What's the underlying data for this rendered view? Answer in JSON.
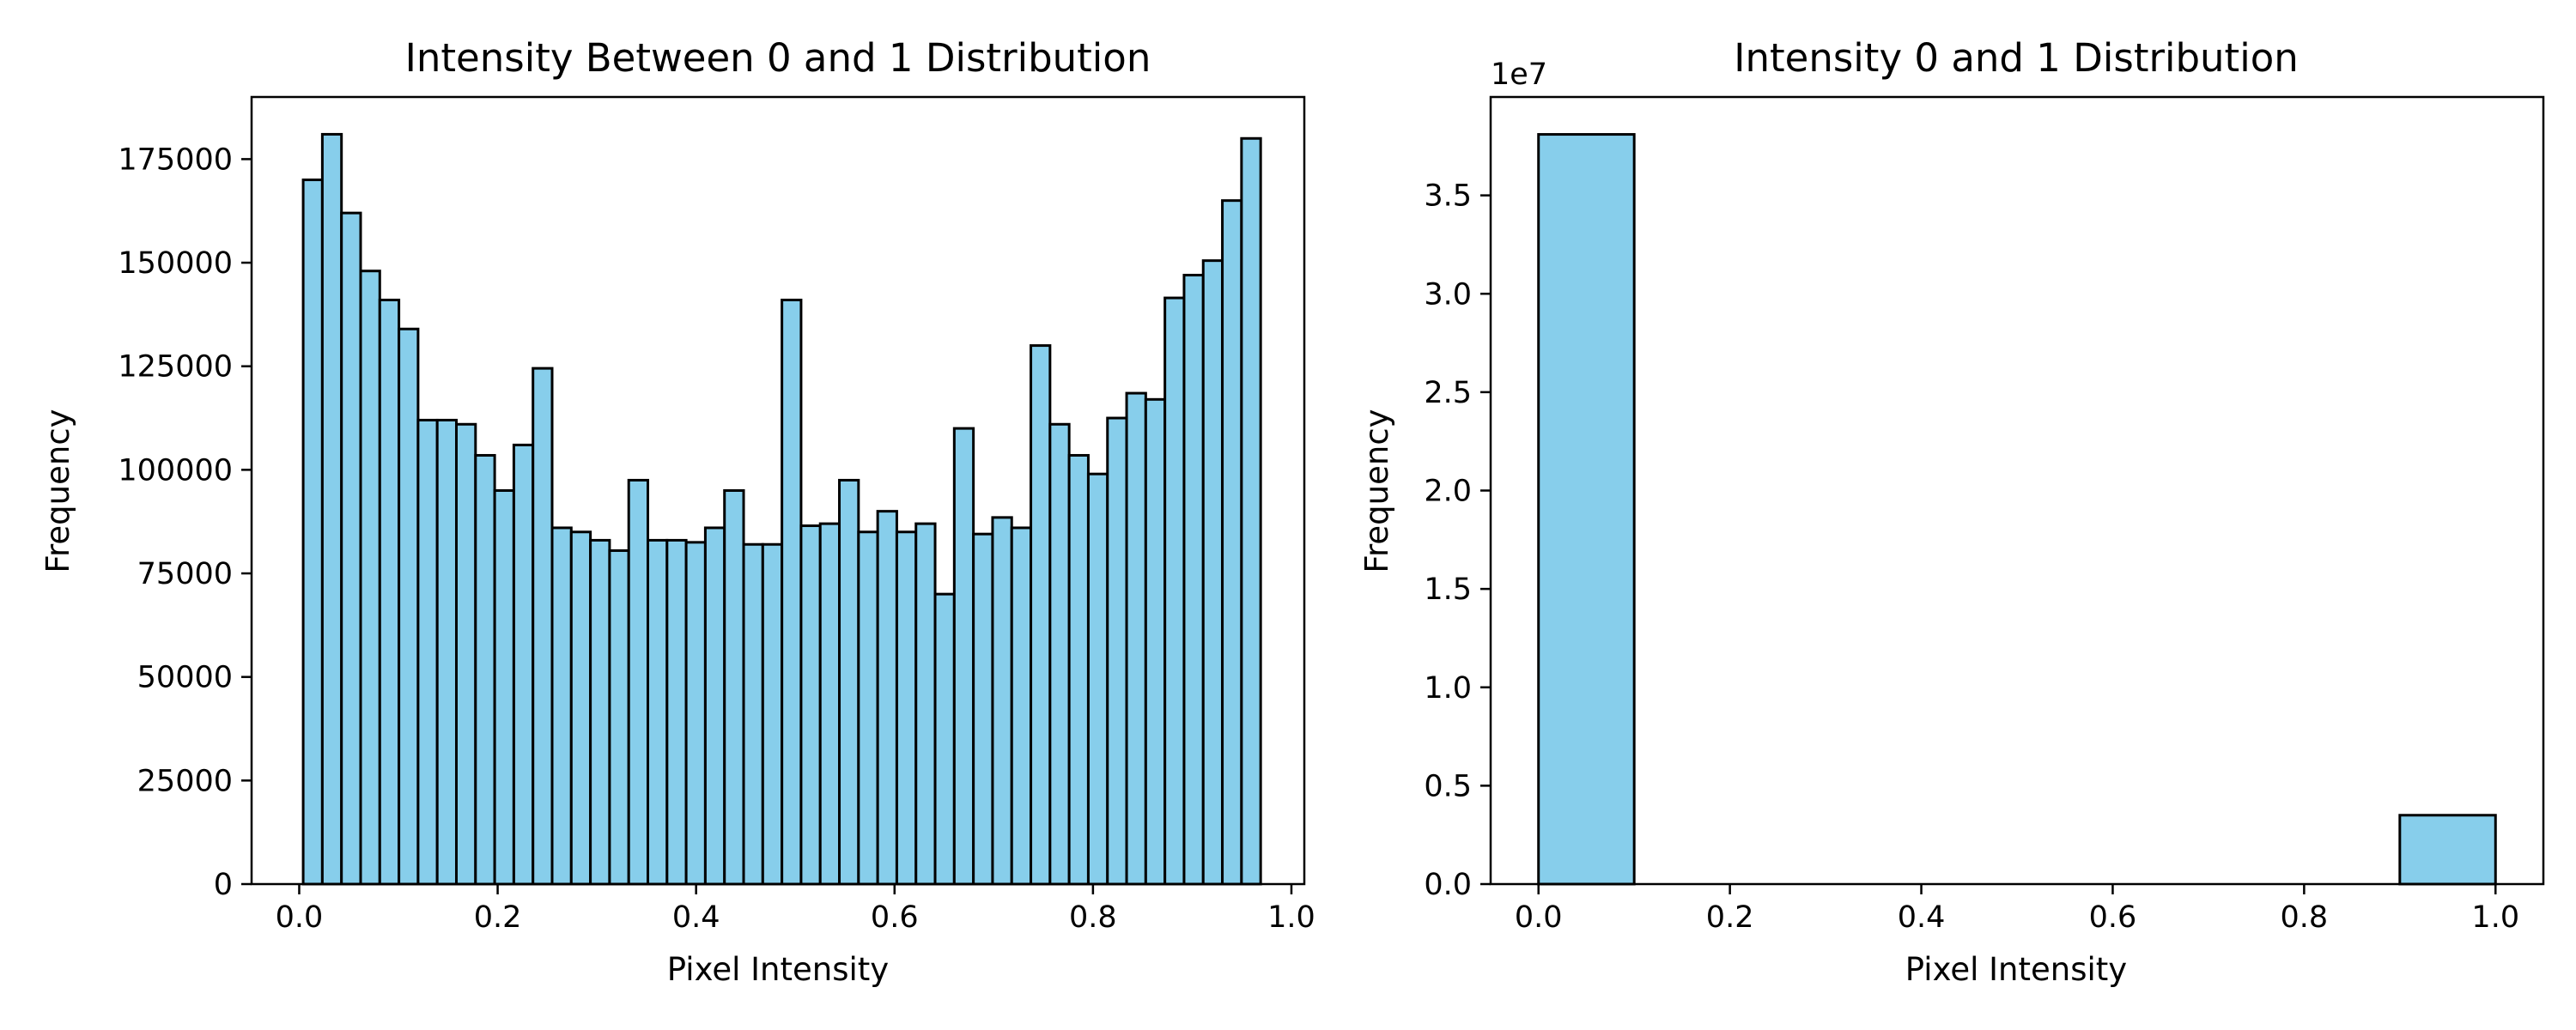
{
  "chart_data": [
    {
      "type": "bar",
      "title": "Intensity Between 0 and 1 Distribution",
      "xlabel": "Pixel Intensity",
      "ylabel": "Frequency",
      "xlim": [
        -0.048,
        1.013
      ],
      "ylim": [
        0,
        190000
      ],
      "xticks": [
        "0.0",
        "0.2",
        "0.4",
        "0.6",
        "0.8",
        "1.0"
      ],
      "xtick_values": [
        0,
        0.2,
        0.4,
        0.6,
        0.8,
        1.0
      ],
      "yticks": [
        "0",
        "25000",
        "50000",
        "75000",
        "100000",
        "125000",
        "150000",
        "175000"
      ],
      "ytick_values": [
        0,
        25000,
        50000,
        75000,
        100000,
        125000,
        150000,
        175000
      ],
      "bin_start": 0.004,
      "bin_width": 0.0193,
      "values": [
        170000,
        181000,
        162000,
        148000,
        141000,
        134000,
        112000,
        112000,
        111000,
        103500,
        95000,
        106000,
        124500,
        86000,
        85000,
        83000,
        80500,
        97500,
        83000,
        83000,
        82500,
        86000,
        95000,
        82000,
        82000,
        141000,
        86500,
        87000,
        97500,
        85000,
        90000,
        85000,
        87000,
        70000,
        110000,
        84500,
        88500,
        86000,
        130000,
        111000,
        103500,
        99000,
        112500,
        118500,
        117000,
        141500,
        147000,
        150500,
        165000,
        180000
      ],
      "bar_color": "#87ceeb",
      "edge_color": "#000000",
      "grid": false
    },
    {
      "type": "bar",
      "title": "Intensity 0 and 1 Distribution",
      "xlabel": "Pixel Intensity",
      "ylabel": "Frequency",
      "offset_label": "1e7",
      "xlim": [
        -0.05,
        1.05
      ],
      "ylim": [
        0,
        40000000
      ],
      "xticks": [
        "0.0",
        "0.2",
        "0.4",
        "0.6",
        "0.8",
        "1.0"
      ],
      "xtick_values": [
        0,
        0.2,
        0.4,
        0.6,
        0.8,
        1.0
      ],
      "yticks": [
        "0.0",
        "0.5",
        "1.0",
        "1.5",
        "2.0",
        "2.5",
        "3.0",
        "3.5"
      ],
      "ytick_values": [
        0,
        5000000,
        10000000,
        15000000,
        20000000,
        25000000,
        30000000,
        35000000
      ],
      "bin_start": 0,
      "bin_width": 0.1,
      "values": [
        38100000,
        0,
        0,
        0,
        0,
        0,
        0,
        0,
        0,
        3500000
      ],
      "bar_color": "#87ceeb",
      "edge_color": "#000000",
      "grid": false
    }
  ]
}
